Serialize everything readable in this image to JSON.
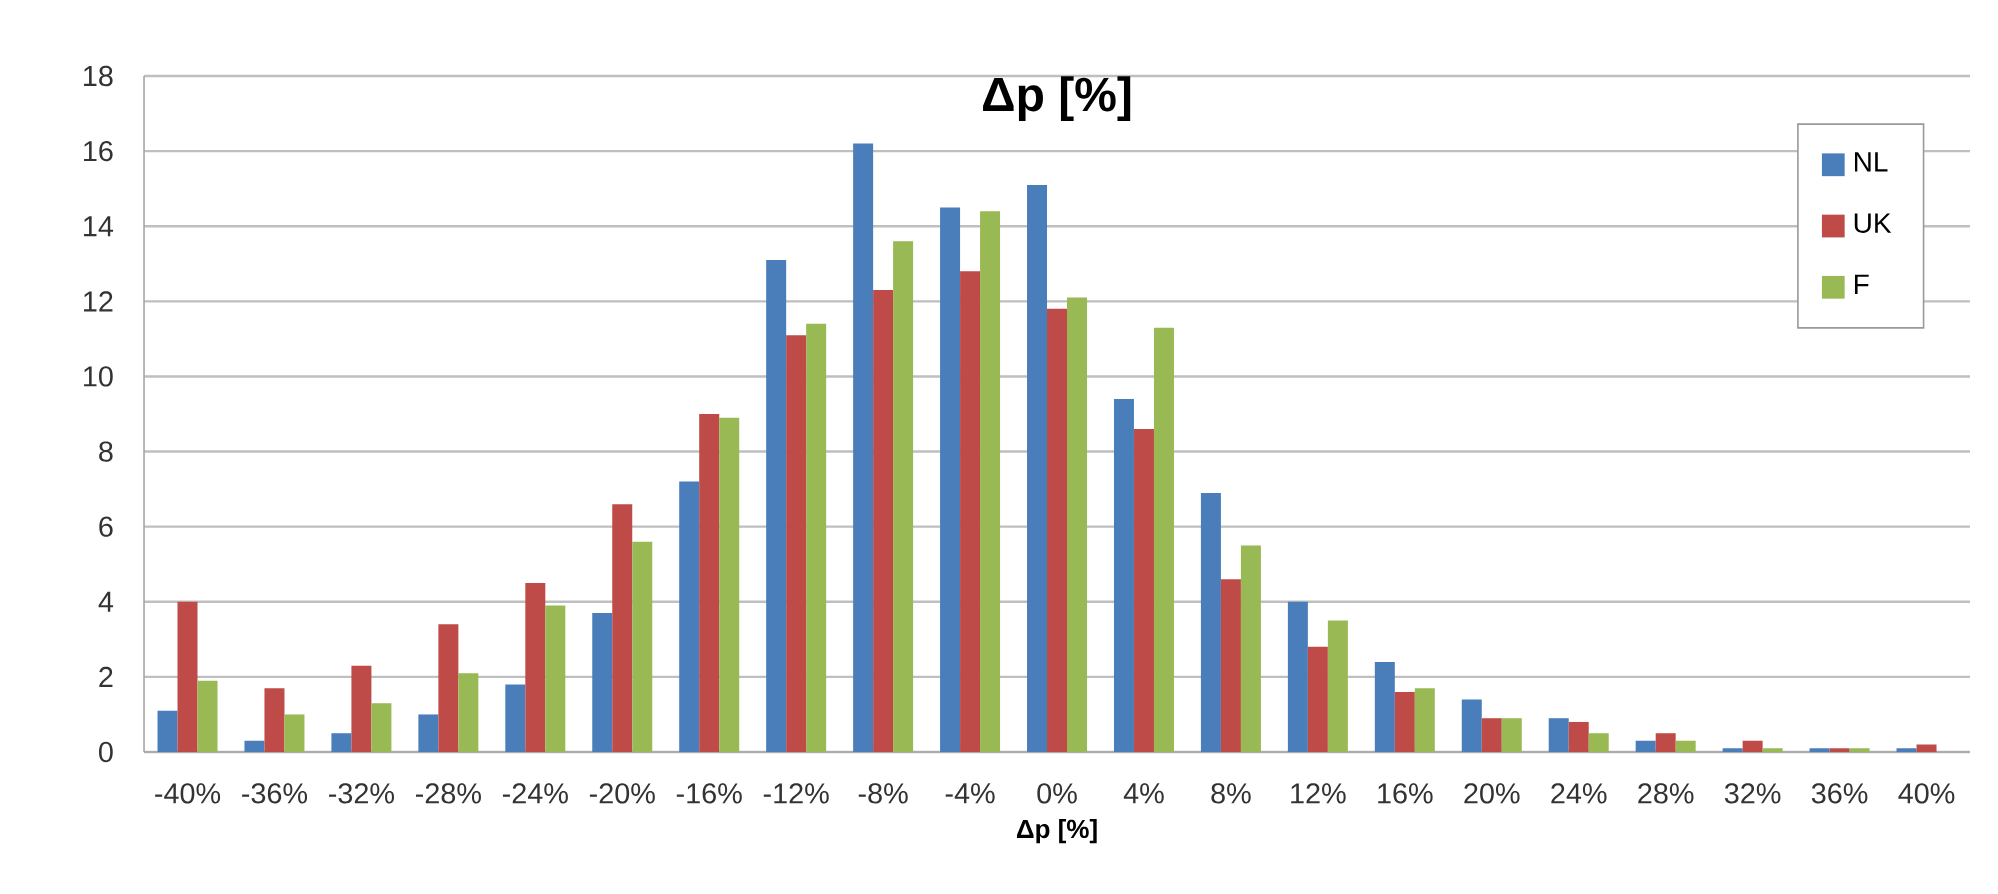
{
  "chart_data": {
    "type": "bar",
    "title": "Δp [%]",
    "xlabel": "Δp [%]",
    "categories": [
      "-40%",
      "-36%",
      "-32%",
      "-28%",
      "-24%",
      "-20%",
      "-16%",
      "-12%",
      "-8%",
      "-4%",
      "0%",
      "4%",
      "8%",
      "12%",
      "16%",
      "20%",
      "24%",
      "28%",
      "32%",
      "36%",
      "40%"
    ],
    "series": [
      {
        "name": "NL",
        "color": "#4a7ebb",
        "values": [
          1.1,
          0.3,
          0.5,
          1.0,
          1.8,
          3.7,
          7.2,
          13.1,
          16.2,
          14.5,
          15.1,
          9.4,
          6.9,
          4.0,
          2.4,
          1.4,
          0.9,
          0.3,
          0.1,
          0.1,
          0.1
        ]
      },
      {
        "name": "UK",
        "color": "#be4b48",
        "values": [
          4.0,
          1.7,
          2.3,
          3.4,
          4.5,
          6.6,
          9.0,
          11.1,
          12.3,
          12.8,
          11.8,
          8.6,
          4.6,
          2.8,
          1.6,
          0.9,
          0.8,
          0.5,
          0.3,
          0.1,
          0.2
        ]
      },
      {
        "name": "F",
        "color": "#98b954",
        "values": [
          1.9,
          1.0,
          1.3,
          2.1,
          3.9,
          5.6,
          8.9,
          11.4,
          13.6,
          14.4,
          12.1,
          11.3,
          5.5,
          3.5,
          1.7,
          0.9,
          0.5,
          0.3,
          0.1,
          0.1,
          0.0
        ]
      }
    ],
    "ylim": [
      0,
      18
    ],
    "yticks": [
      0,
      2,
      4,
      6,
      8,
      10,
      12,
      14,
      16,
      18
    ],
    "grid": "y",
    "legend": "top right"
  }
}
